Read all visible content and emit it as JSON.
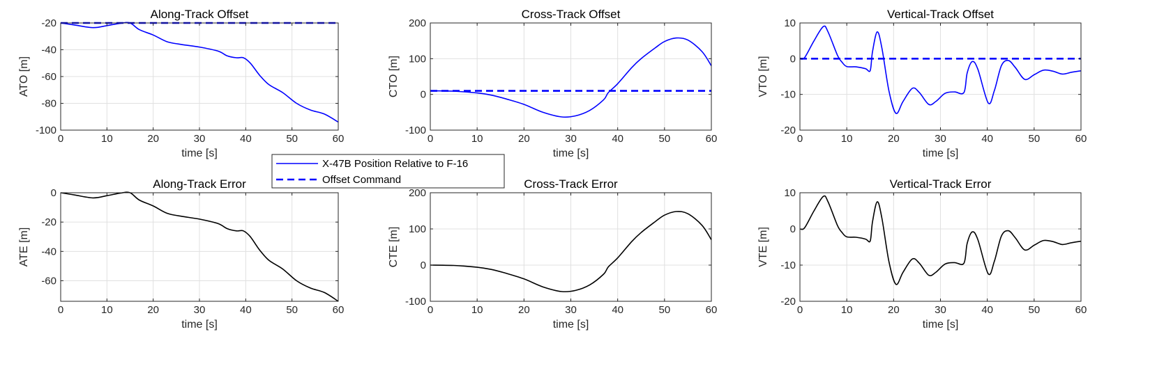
{
  "chart_data": [
    {
      "type": "line",
      "title": "Along-Track Offset",
      "xlabel": "time [s]",
      "ylabel": "ATO [m]",
      "xlim": [
        0,
        60
      ],
      "ylim": [
        -100,
        -20
      ],
      "xticks": [
        0,
        10,
        20,
        30,
        40,
        50,
        60
      ],
      "yticks": [
        -100,
        -80,
        -60,
        -40,
        -20
      ],
      "grid": true,
      "series": [
        {
          "name": "X-47B Position Relative to F-16",
          "style": "solid",
          "color": "#0000ff",
          "x": [
            0,
            3,
            7,
            10,
            13,
            15,
            17,
            20,
            23,
            26,
            30,
            34,
            36,
            38,
            39.5,
            41,
            43,
            45,
            48,
            51,
            54,
            57,
            60
          ],
          "y": [
            -20,
            -21.5,
            -23.5,
            -22,
            -20.2,
            -20,
            -25,
            -29,
            -34,
            -36,
            -38,
            -41,
            -44.5,
            -46,
            -46,
            -50,
            -59,
            -66,
            -72,
            -80,
            -85,
            -88,
            -94
          ]
        },
        {
          "name": "Offset Command",
          "style": "dashed",
          "color": "#0000ff",
          "x": [
            0,
            60
          ],
          "y": [
            -20,
            -20
          ]
        }
      ]
    },
    {
      "type": "line",
      "title": "Cross-Track Offset",
      "xlabel": "time [s]",
      "ylabel": "CTO [m]",
      "xlim": [
        0,
        60
      ],
      "ylim": [
        -100,
        200
      ],
      "xticks": [
        0,
        10,
        20,
        30,
        40,
        50,
        60
      ],
      "yticks": [
        -100,
        0,
        100,
        200
      ],
      "grid": true,
      "series": [
        {
          "name": "X-47B Position Relative to F-16",
          "style": "solid",
          "color": "#0000ff",
          "x": [
            0,
            5,
            10,
            13,
            16,
            20,
            24,
            28,
            31,
            34,
            37,
            38,
            40,
            43,
            45,
            48,
            50,
            52.5,
            55,
            58,
            60
          ],
          "y": [
            10,
            9,
            4,
            -2,
            -12,
            -28,
            -50,
            -63,
            -60,
            -45,
            -15,
            5,
            30,
            75,
            100,
            130,
            148,
            158,
            152,
            120,
            80
          ]
        },
        {
          "name": "Offset Command",
          "style": "dashed",
          "color": "#0000ff",
          "x": [
            0,
            60
          ],
          "y": [
            10,
            10
          ]
        }
      ]
    },
    {
      "type": "line",
      "title": "Vertical-Track Offset",
      "xlabel": "time [s]",
      "ylabel": "VTO [m]",
      "xlim": [
        0,
        60
      ],
      "ylim": [
        -20,
        10
      ],
      "xticks": [
        0,
        10,
        20,
        30,
        40,
        50,
        60
      ],
      "yticks": [
        -20,
        -10,
        0,
        10
      ],
      "grid": true,
      "series": [
        {
          "name": "X-47B Position Relative to F-16",
          "style": "solid",
          "color": "#0000ff",
          "x": [
            0,
            1,
            3,
            5,
            6,
            8,
            9,
            10,
            12,
            14,
            15,
            15.5,
            16.5,
            17.5,
            19,
            20.5,
            22,
            24,
            25.5,
            27.5,
            29,
            31,
            33,
            35,
            35.7,
            36.8,
            38,
            40.2,
            41.5,
            43,
            44.5,
            46,
            48,
            50,
            52,
            54,
            56,
            58,
            60
          ],
          "y": [
            0,
            0.3,
            5,
            9,
            7.5,
            1,
            -1,
            -2.2,
            -2.3,
            -2.8,
            -3.3,
            2,
            7.5,
            3,
            -9,
            -15.3,
            -12,
            -8.3,
            -9.5,
            -12.8,
            -12,
            -9.7,
            -9.3,
            -9.5,
            -4,
            -0.8,
            -3,
            -12.4,
            -9,
            -2,
            -0.5,
            -2.5,
            -5.8,
            -4.5,
            -3.2,
            -3.5,
            -4.3,
            -3.8,
            -3.4
          ]
        },
        {
          "name": "Offset Command",
          "style": "dashed",
          "color": "#0000ff",
          "x": [
            0,
            60
          ],
          "y": [
            0,
            0
          ]
        }
      ]
    },
    {
      "type": "line",
      "title": "Along-Track Error",
      "xlabel": "time [s]",
      "ylabel": "ATE [m]",
      "xlim": [
        0,
        60
      ],
      "ylim": [
        -74,
        0
      ],
      "xticks": [
        0,
        10,
        20,
        30,
        40,
        50,
        60
      ],
      "yticks": [
        -60,
        -40,
        -20,
        0
      ],
      "grid": true,
      "series": [
        {
          "style": "solid",
          "color": "#000000",
          "x": [
            0,
            3,
            7,
            10,
            13,
            15,
            17,
            20,
            23,
            26,
            30,
            34,
            36,
            38,
            39.5,
            41,
            43,
            45,
            48,
            51,
            54,
            57,
            60
          ],
          "y": [
            0,
            -1.5,
            -3.5,
            -2,
            -0.2,
            0,
            -5,
            -9,
            -14,
            -16,
            -18,
            -21,
            -24.5,
            -26,
            -26,
            -30,
            -39,
            -46,
            -52,
            -60,
            -65,
            -68,
            -74
          ]
        }
      ]
    },
    {
      "type": "line",
      "title": "Cross-Track Error",
      "xlabel": "time [s]",
      "ylabel": "CTE [m]",
      "xlim": [
        0,
        60
      ],
      "ylim": [
        -100,
        200
      ],
      "xticks": [
        0,
        10,
        20,
        30,
        40,
        50,
        60
      ],
      "yticks": [
        -100,
        0,
        100,
        200
      ],
      "grid": true,
      "series": [
        {
          "style": "solid",
          "color": "#000000",
          "x": [
            0,
            5,
            10,
            13,
            16,
            20,
            24,
            28,
            31,
            34,
            37,
            38,
            40,
            43,
            45,
            48,
            50,
            52.5,
            55,
            58,
            60
          ],
          "y": [
            0,
            -1,
            -6,
            -12,
            -22,
            -38,
            -60,
            -73,
            -70,
            -55,
            -25,
            -5,
            20,
            65,
            90,
            120,
            138,
            148,
            142,
            110,
            70
          ]
        }
      ]
    },
    {
      "type": "line",
      "title": "Vertical-Track Error",
      "xlabel": "time [s]",
      "ylabel": "VTE [m]",
      "xlim": [
        0,
        60
      ],
      "ylim": [
        -20,
        10
      ],
      "xticks": [
        0,
        10,
        20,
        30,
        40,
        50,
        60
      ],
      "yticks": [
        -20,
        -10,
        0,
        10
      ],
      "grid": true,
      "series": [
        {
          "style": "solid",
          "color": "#000000",
          "x": [
            0,
            1,
            3,
            5,
            6,
            8,
            9,
            10,
            12,
            14,
            15,
            15.5,
            16.5,
            17.5,
            19,
            20.5,
            22,
            24,
            25.5,
            27.5,
            29,
            31,
            33,
            35,
            35.7,
            36.8,
            38,
            40.2,
            41.5,
            43,
            44.5,
            46,
            48,
            50,
            52,
            54,
            56,
            58,
            60
          ],
          "y": [
            0,
            0.3,
            5,
            9,
            7.5,
            1,
            -1,
            -2.2,
            -2.3,
            -2.8,
            -3.3,
            2,
            7.5,
            3,
            -9,
            -15.3,
            -12,
            -8.3,
            -9.5,
            -12.8,
            -12,
            -9.7,
            -9.3,
            -9.5,
            -4,
            -0.8,
            -3,
            -12.4,
            -9,
            -2,
            -0.5,
            -2.5,
            -5.8,
            -4.5,
            -3.2,
            -3.5,
            -4.3,
            -3.8,
            -3.4
          ]
        }
      ]
    }
  ],
  "legend": {
    "placement": "between top-left and bottom-left panels",
    "entries": [
      {
        "label": "X-47B Position Relative to F-16",
        "style": "solid",
        "color": "#0000ff"
      },
      {
        "label": "Offset Command",
        "style": "dashed",
        "color": "#0000ff"
      }
    ]
  }
}
